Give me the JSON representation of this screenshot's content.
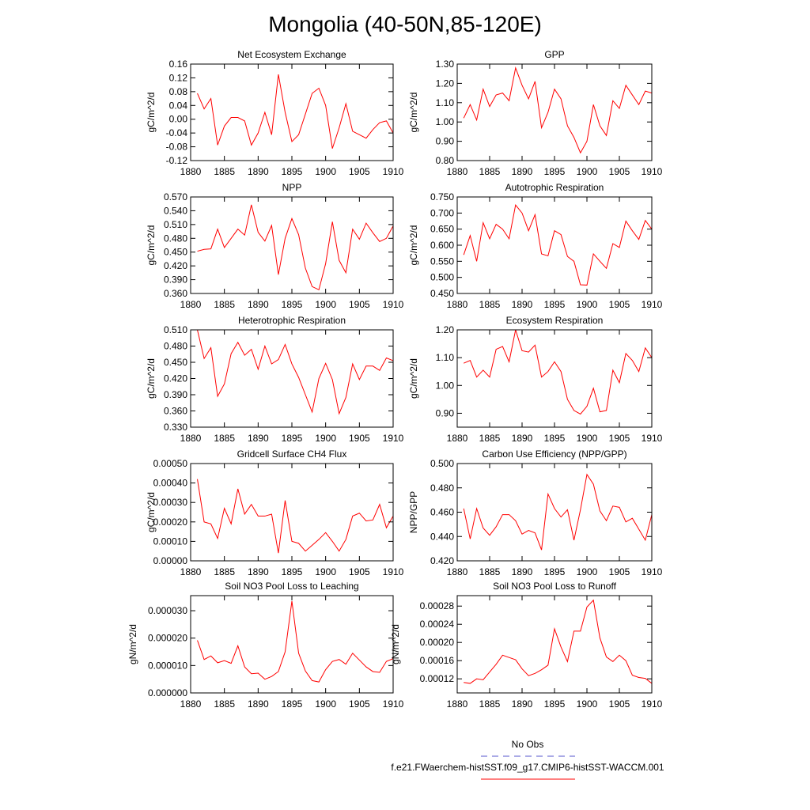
{
  "title": "Mongolia (40-50N,85-120E)",
  "legend": [
    {
      "name": "No Obs",
      "color": "#5555cc",
      "style": "dashed"
    },
    {
      "name": "f.e21.FWaerchem-histSST.f09_g17.CMIP6-histSST-WACCM.001",
      "color": "#ff0000",
      "style": "solid"
    }
  ],
  "chart_data": [
    {
      "type": "line",
      "title": "Net Ecosystem Exchange",
      "ylabel": "gC/m^2/d",
      "color": "#ff0000",
      "x": [
        1881,
        1882,
        1883,
        1884,
        1885,
        1886,
        1887,
        1888,
        1889,
        1890,
        1891,
        1892,
        1893,
        1894,
        1895,
        1896,
        1897,
        1898,
        1899,
        1900,
        1901,
        1902,
        1903,
        1904,
        1905,
        1906,
        1907,
        1908,
        1909,
        1910
      ],
      "values": [
        0.075,
        0.03,
        0.06,
        -0.075,
        -0.02,
        0.005,
        0.005,
        -0.005,
        -0.075,
        -0.04,
        0.02,
        -0.045,
        0.13,
        0.02,
        -0.065,
        -0.045,
        0.015,
        0.075,
        0.09,
        0.04,
        -0.085,
        -0.025,
        0.045,
        -0.035,
        -0.045,
        -0.055,
        -0.03,
        -0.01,
        -0.005,
        -0.04
      ],
      "xlim": [
        1880,
        1910
      ],
      "xticks": [
        1880,
        1885,
        1890,
        1895,
        1900,
        1905,
        1910
      ],
      "ylim": [
        -0.12,
        0.16
      ],
      "yticks": [
        -0.12,
        -0.08,
        -0.04,
        {
          "value": 0,
          "label": "0.00"
        },
        0.04,
        0.08,
        0.12,
        0.16
      ]
    },
    {
      "type": "line",
      "title": "GPP",
      "ylabel": "gC/m^2/d",
      "color": "#ff0000",
      "x": [
        1881,
        1882,
        1883,
        1884,
        1885,
        1886,
        1887,
        1888,
        1889,
        1890,
        1891,
        1892,
        1893,
        1894,
        1895,
        1896,
        1897,
        1898,
        1899,
        1900,
        1901,
        1902,
        1903,
        1904,
        1905,
        1906,
        1907,
        1908,
        1909,
        1910
      ],
      "values": [
        1.02,
        1.09,
        1.01,
        1.17,
        1.08,
        1.14,
        1.15,
        1.11,
        1.28,
        1.19,
        1.12,
        1.21,
        0.97,
        1.05,
        1.17,
        1.12,
        0.98,
        0.92,
        0.84,
        0.9,
        1.09,
        0.98,
        0.93,
        1.11,
        1.07,
        1.19,
        1.14,
        1.09,
        1.16,
        1.15
      ],
      "xlim": [
        1880,
        1910
      ],
      "xticks": [
        1880,
        1885,
        1890,
        1895,
        1900,
        1905,
        1910
      ],
      "ylim": [
        0.8,
        1.3
      ],
      "yticks": [
        {
          "value": 0.8,
          "label": "0.80"
        },
        {
          "value": 0.9,
          "label": "0.90"
        },
        {
          "value": 1,
          "label": "1.00"
        },
        {
          "value": 1.1,
          "label": "1.10"
        },
        {
          "value": 1.2,
          "label": "1.20"
        },
        {
          "value": 1.3,
          "label": "1.30"
        }
      ]
    },
    {
      "type": "line",
      "title": "NPP",
      "ylabel": "gC/m^2/d",
      "color": "#ff0000",
      "x": [
        1881,
        1882,
        1883,
        1884,
        1885,
        1886,
        1887,
        1888,
        1889,
        1890,
        1891,
        1892,
        1893,
        1894,
        1895,
        1896,
        1897,
        1898,
        1899,
        1900,
        1901,
        1902,
        1903,
        1904,
        1905,
        1906,
        1907,
        1908,
        1909,
        1910
      ],
      "values": [
        0.452,
        0.456,
        0.457,
        0.5,
        0.46,
        0.48,
        0.5,
        0.487,
        0.553,
        0.493,
        0.474,
        0.508,
        0.401,
        0.48,
        0.523,
        0.488,
        0.415,
        0.375,
        0.368,
        0.425,
        0.516,
        0.432,
        0.405,
        0.5,
        0.478,
        0.513,
        0.492,
        0.473,
        0.48,
        0.507
      ],
      "xlim": [
        1880,
        1910
      ],
      "xticks": [
        1880,
        1885,
        1890,
        1895,
        1900,
        1905,
        1910
      ],
      "ylim": [
        0.36,
        0.57
      ],
      "yticks": [
        {
          "value": 0.36,
          "label": "0.360"
        },
        {
          "value": 0.39,
          "label": "0.390"
        },
        {
          "value": 0.42,
          "label": "0.420"
        },
        {
          "value": 0.45,
          "label": "0.450"
        },
        {
          "value": 0.48,
          "label": "0.480"
        },
        {
          "value": 0.51,
          "label": "0.510"
        },
        {
          "value": 0.54,
          "label": "0.540"
        },
        {
          "value": 0.57,
          "label": "0.570"
        }
      ]
    },
    {
      "type": "line",
      "title": "Autotrophic Respiration",
      "ylabel": "gC/m^2/d",
      "color": "#ff0000",
      "x": [
        1881,
        1882,
        1883,
        1884,
        1885,
        1886,
        1887,
        1888,
        1889,
        1890,
        1891,
        1892,
        1893,
        1894,
        1895,
        1896,
        1897,
        1898,
        1899,
        1900,
        1901,
        1902,
        1903,
        1904,
        1905,
        1906,
        1907,
        1908,
        1909,
        1910
      ],
      "values": [
        0.57,
        0.63,
        0.55,
        0.67,
        0.62,
        0.665,
        0.65,
        0.62,
        0.725,
        0.7,
        0.645,
        0.695,
        0.573,
        0.567,
        0.645,
        0.633,
        0.565,
        0.55,
        0.477,
        0.476,
        0.573,
        0.55,
        0.528,
        0.605,
        0.593,
        0.675,
        0.645,
        0.618,
        0.677,
        0.65
      ],
      "xlim": [
        1880,
        1910
      ],
      "xticks": [
        1880,
        1885,
        1890,
        1895,
        1900,
        1905,
        1910
      ],
      "ylim": [
        0.45,
        0.75
      ],
      "yticks": [
        {
          "value": 0.45,
          "label": "0.450"
        },
        {
          "value": 0.5,
          "label": "0.500"
        },
        {
          "value": 0.55,
          "label": "0.550"
        },
        {
          "value": 0.6,
          "label": "0.600"
        },
        {
          "value": 0.65,
          "label": "0.650"
        },
        {
          "value": 0.7,
          "label": "0.700"
        },
        {
          "value": 0.75,
          "label": "0.750"
        }
      ]
    },
    {
      "type": "line",
      "title": "Heterotrophic Respiration",
      "ylabel": "gC/m^2/d",
      "color": "#ff0000",
      "x": [
        1881,
        1882,
        1883,
        1884,
        1885,
        1886,
        1887,
        1888,
        1889,
        1890,
        1891,
        1892,
        1893,
        1894,
        1895,
        1896,
        1897,
        1898,
        1899,
        1900,
        1901,
        1902,
        1903,
        1904,
        1905,
        1906,
        1907,
        1908,
        1909,
        1910
      ],
      "values": [
        0.51,
        0.457,
        0.477,
        0.387,
        0.41,
        0.466,
        0.487,
        0.463,
        0.474,
        0.437,
        0.48,
        0.447,
        0.455,
        0.483,
        0.447,
        0.422,
        0.39,
        0.358,
        0.42,
        0.448,
        0.418,
        0.355,
        0.385,
        0.447,
        0.418,
        0.443,
        0.443,
        0.435,
        0.458,
        0.453
      ],
      "xlim": [
        1880,
        1910
      ],
      "xticks": [
        1880,
        1885,
        1890,
        1895,
        1900,
        1905,
        1910
      ],
      "ylim": [
        0.33,
        0.51
      ],
      "yticks": [
        {
          "value": 0.33,
          "label": "0.330"
        },
        {
          "value": 0.36,
          "label": "0.360"
        },
        {
          "value": 0.39,
          "label": "0.390"
        },
        {
          "value": 0.42,
          "label": "0.420"
        },
        {
          "value": 0.45,
          "label": "0.450"
        },
        {
          "value": 0.48,
          "label": "0.480"
        },
        {
          "value": 0.51,
          "label": "0.510"
        }
      ]
    },
    {
      "type": "line",
      "title": "Ecosystem Respiration",
      "ylabel": "gC/m^2/d",
      "color": "#ff0000",
      "x": [
        1881,
        1882,
        1883,
        1884,
        1885,
        1886,
        1887,
        1888,
        1889,
        1890,
        1891,
        1892,
        1893,
        1894,
        1895,
        1896,
        1897,
        1898,
        1899,
        1900,
        1901,
        1902,
        1903,
        1904,
        1905,
        1906,
        1907,
        1908,
        1909,
        1910
      ],
      "values": [
        1.08,
        1.09,
        1.03,
        1.055,
        1.03,
        1.13,
        1.14,
        1.085,
        1.2,
        1.125,
        1.12,
        1.145,
        1.03,
        1.05,
        1.085,
        1.05,
        0.95,
        0.91,
        0.897,
        0.925,
        0.99,
        0.905,
        0.91,
        1.055,
        1.01,
        1.115,
        1.09,
        1.05,
        1.135,
        1.1
      ],
      "xlim": [
        1880,
        1910
      ],
      "xticks": [
        1880,
        1885,
        1890,
        1895,
        1900,
        1905,
        1910
      ],
      "ylim": [
        0.85,
        1.2
      ],
      "yticks": [
        {
          "value": 0.9,
          "label": "0.90"
        },
        {
          "value": 1,
          "label": "1.00"
        },
        {
          "value": 1.1,
          "label": "1.10"
        },
        {
          "value": 1.2,
          "label": "1.20"
        }
      ]
    },
    {
      "type": "line",
      "title": "Gridcell Surface CH4 Flux",
      "ylabel": "gC/m^2/d",
      "color": "#ff0000",
      "x": [
        1881,
        1882,
        1883,
        1884,
        1885,
        1886,
        1887,
        1888,
        1889,
        1890,
        1891,
        1892,
        1893,
        1894,
        1895,
        1896,
        1897,
        1898,
        1899,
        1900,
        1901,
        1902,
        1903,
        1904,
        1905,
        1906,
        1907,
        1908,
        1909,
        1910
      ],
      "values": [
        0.00042,
        0.0002,
        0.00019,
        0.000115,
        0.00027,
        0.00019,
        0.00037,
        0.00024,
        0.00029,
        0.00023,
        0.00023,
        0.00024,
        4e-05,
        0.00031,
        0.0001,
        9e-05,
        5e-05,
        8e-05,
        0.00011,
        0.000145,
        0.0001,
        5e-05,
        0.00011,
        0.00023,
        0.000245,
        0.000205,
        0.00021,
        0.00029,
        0.00017,
        0.00023
      ],
      "xlim": [
        1880,
        1910
      ],
      "xticks": [
        1880,
        1885,
        1890,
        1895,
        1900,
        1905,
        1910
      ],
      "ylim": [
        0,
        0.0005
      ],
      "yticks": [
        {
          "value": 0,
          "label": "0.00000"
        },
        {
          "value": 0.0001,
          "label": "0.00010"
        },
        {
          "value": 0.0002,
          "label": "0.00020"
        },
        {
          "value": 0.0003,
          "label": "0.00030"
        },
        {
          "value": 0.0004,
          "label": "0.00040"
        },
        {
          "value": 0.0005,
          "label": "0.00050"
        }
      ]
    },
    {
      "type": "line",
      "title": "Carbon Use Efficiency (NPP/GPP)",
      "ylabel": "NPP/GPP",
      "color": "#ff0000",
      "x": [
        1881,
        1882,
        1883,
        1884,
        1885,
        1886,
        1887,
        1888,
        1889,
        1890,
        1891,
        1892,
        1893,
        1894,
        1895,
        1896,
        1897,
        1898,
        1899,
        1900,
        1901,
        1902,
        1903,
        1904,
        1905,
        1906,
        1907,
        1908,
        1909,
        1910
      ],
      "values": [
        0.463,
        0.438,
        0.463,
        0.447,
        0.441,
        0.448,
        0.458,
        0.458,
        0.453,
        0.442,
        0.445,
        0.443,
        0.429,
        0.475,
        0.463,
        0.456,
        0.462,
        0.437,
        0.462,
        0.491,
        0.483,
        0.461,
        0.453,
        0.465,
        0.464,
        0.452,
        0.455,
        0.446,
        0.437,
        0.458
      ],
      "xlim": [
        1880,
        1910
      ],
      "xticks": [
        1880,
        1885,
        1890,
        1895,
        1900,
        1905,
        1910
      ],
      "ylim": [
        0.42,
        0.5
      ],
      "yticks": [
        {
          "value": 0.42,
          "label": "0.420"
        },
        {
          "value": 0.44,
          "label": "0.440"
        },
        {
          "value": 0.46,
          "label": "0.460"
        },
        {
          "value": 0.48,
          "label": "0.480"
        },
        {
          "value": 0.5,
          "label": "0.500"
        }
      ]
    },
    {
      "type": "line",
      "title": "Soil NO3 Pool Loss to Leaching",
      "ylabel": "gN/m^2/d",
      "color": "#ff0000",
      "x": [
        1881,
        1882,
        1883,
        1884,
        1885,
        1886,
        1887,
        1888,
        1889,
        1890,
        1891,
        1892,
        1893,
        1894,
        1895,
        1896,
        1897,
        1898,
        1899,
        1900,
        1901,
        1902,
        1903,
        1904,
        1905,
        1906,
        1907,
        1908,
        1909,
        1910
      ],
      "values": [
        1.92e-05,
        1.22e-05,
        1.35e-05,
        1.1e-05,
        1.18e-05,
        1.08e-05,
        1.72e-05,
        9.5e-06,
        7e-06,
        7.2e-06,
        5e-06,
        6e-06,
        7.8e-06,
        1.5e-05,
        3.35e-05,
        1.45e-05,
        8e-06,
        4.5e-06,
        4e-06,
        8.5e-06,
        1.15e-05,
        1.22e-05,
        1.05e-05,
        1.45e-05,
        1.2e-05,
        9.5e-06,
        7.8e-06,
        7.5e-06,
        1.15e-05,
        1.25e-05
      ],
      "xlim": [
        1880,
        1910
      ],
      "xticks": [
        1880,
        1885,
        1890,
        1895,
        1900,
        1905,
        1910
      ],
      "ylim": [
        0,
        3.55e-05
      ],
      "yticks": [
        {
          "value": 0,
          "label": "0.000000"
        },
        {
          "value": 1e-05,
          "label": "0.000010"
        },
        {
          "value": 2e-05,
          "label": "0.000020"
        },
        {
          "value": 3e-05,
          "label": "0.000030"
        }
      ]
    },
    {
      "type": "line",
      "title": "Soil NO3 Pool Loss to Runoff",
      "ylabel": "gN/m^2/d",
      "color": "#ff0000",
      "x": [
        1881,
        1882,
        1883,
        1884,
        1885,
        1886,
        1887,
        1888,
        1889,
        1890,
        1891,
        1892,
        1893,
        1894,
        1895,
        1896,
        1897,
        1898,
        1899,
        1900,
        1901,
        1902,
        1903,
        1904,
        1905,
        1906,
        1907,
        1908,
        1909,
        1910
      ],
      "values": [
        0.000112,
        0.00011,
        0.00012,
        0.000118,
        0.000135,
        0.000152,
        0.000172,
        0.000167,
        0.000162,
        0.000142,
        0.000127,
        0.000132,
        0.00014,
        0.00015,
        0.00023,
        0.00019,
        0.000158,
        0.000225,
        0.000225,
        0.000278,
        0.000293,
        0.00021,
        0.000168,
        0.000158,
        0.000172,
        0.00016,
        0.000128,
        0.000123,
        0.000121,
        0.00011
      ],
      "xlim": [
        1880,
        1910
      ],
      "xticks": [
        1880,
        1885,
        1890,
        1895,
        1900,
        1905,
        1910
      ],
      "ylim": [
        8.9e-05,
        0.000303
      ],
      "yticks": [
        0.00012,
        0.00016,
        {
          "value": 0.0002,
          "label": "0.00020"
        },
        0.00024,
        0.00028
      ]
    }
  ]
}
